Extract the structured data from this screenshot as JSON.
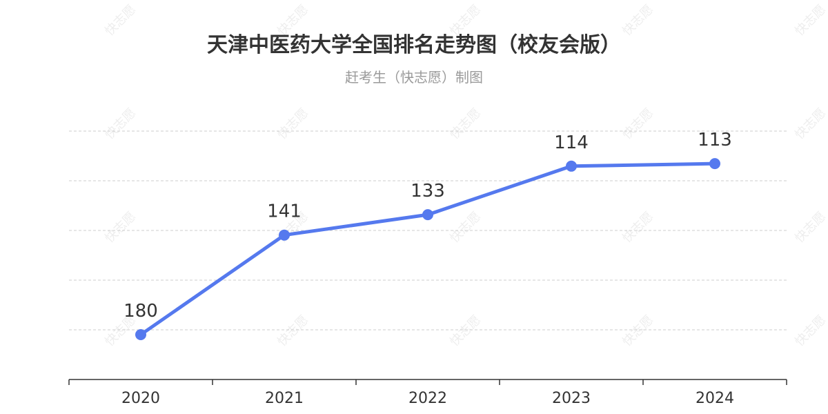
{
  "chart_data": {
    "type": "line",
    "title": "天津中医药大学全国排名走势图（校友会版）",
    "subtitle": "赶考生（快志愿）制图",
    "categories": [
      "2020",
      "2021",
      "2022",
      "2023",
      "2024"
    ],
    "series": [
      {
        "values": [
          180,
          141,
          133,
          114,
          113
        ]
      }
    ],
    "y_inverted": true,
    "grid": true,
    "watermark": "快志愿",
    "colors": {
      "line": "#5579ee",
      "grid": "#cccccc",
      "axis": "#333333"
    }
  }
}
